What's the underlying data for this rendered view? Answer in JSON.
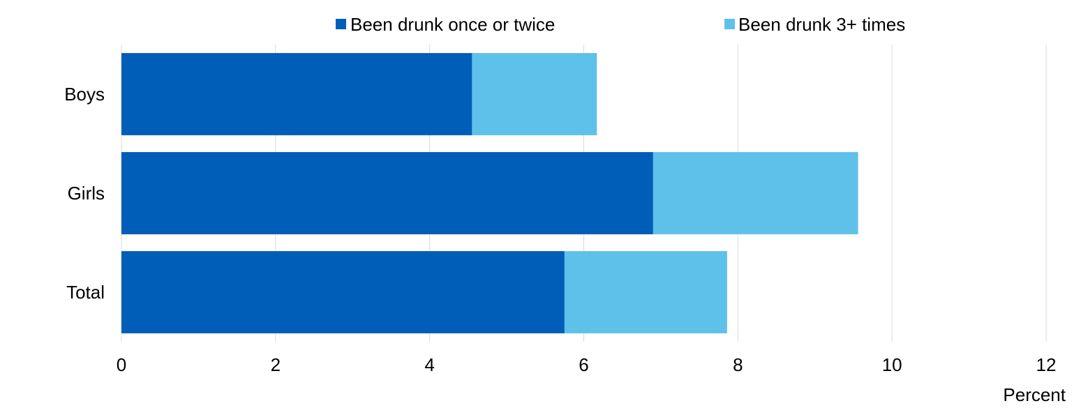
{
  "chart_data": {
    "type": "bar",
    "orientation": "horizontal",
    "stacked": true,
    "categories": [
      "Boys",
      "Girls",
      "Total"
    ],
    "series": [
      {
        "name": "Been drunk once or twice",
        "values": [
          4.55,
          6.9,
          5.75
        ],
        "color": "#005EB8"
      },
      {
        "name": "Been drunk 3+ times",
        "values": [
          1.62,
          2.66,
          2.11
        ],
        "color": "#5EC1EA"
      }
    ],
    "xlim": [
      0,
      12
    ],
    "xticks": [
      "0",
      "2",
      "4",
      "6",
      "8",
      "10",
      "12"
    ],
    "xlabel": "Percent",
    "grid": "vertical",
    "legend_position": "top-center"
  }
}
